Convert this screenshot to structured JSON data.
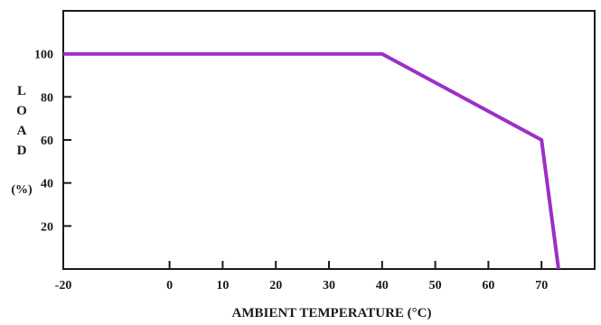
{
  "chart_data": {
    "type": "line",
    "title": "",
    "xlabel": "AMBIENT TEMPERATURE (°C)",
    "ylabel_letters": [
      "L",
      "O",
      "A",
      "D"
    ],
    "ylabel_unit": "(%)",
    "x_ticks": [
      -20,
      0,
      10,
      20,
      30,
      40,
      50,
      60,
      70
    ],
    "y_ticks": [
      20,
      40,
      60,
      80,
      100
    ],
    "xlim": [
      -20,
      80
    ],
    "ylim": [
      0,
      120
    ],
    "grid": false,
    "series": [
      {
        "x": [
          -20,
          40,
          70,
          73.2
        ],
        "y": [
          100,
          100,
          60,
          0
        ]
      }
    ],
    "line_color": "#9b30c6"
  }
}
